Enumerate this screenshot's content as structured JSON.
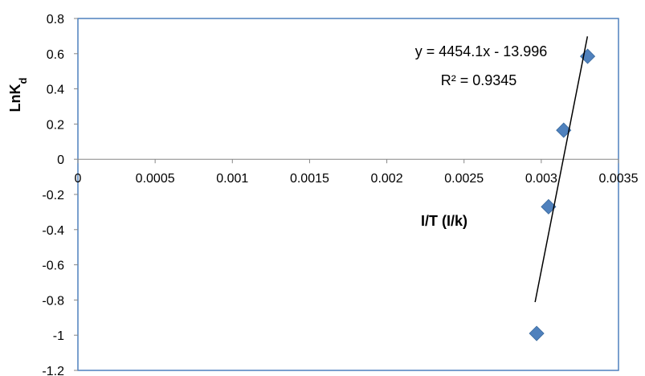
{
  "chart_data": {
    "type": "scatter",
    "xlabel": "I/T (I/k)",
    "ylabel": {
      "main": "LnK",
      "sub": "d"
    },
    "xlim": [
      0,
      0.0035
    ],
    "ylim": [
      -1.2,
      0.8
    ],
    "x_ticks": [
      "0",
      "0.0005",
      "0.001",
      "0.0015",
      "0.002",
      "0.0025",
      "0.003",
      "0.0035"
    ],
    "y_ticks": [
      "0.8",
      "0.6",
      "0.4",
      "0.2",
      "0",
      "-0.2",
      "-0.4",
      "-0.6",
      "-0.8",
      "-1",
      "-1.2"
    ],
    "grid": false,
    "legend": "none",
    "series": [
      {
        "x": [
          0.0033,
          0.003145,
          0.003047,
          0.00297
        ],
        "y": [
          0.585,
          0.165,
          -0.27,
          -0.99
        ],
        "color": "#4F81BD",
        "marker": "diamond"
      }
    ],
    "trendline": {
      "slope": 4454.1,
      "intercept": -13.996,
      "x_range": [
        0.00296,
        0.003299
      ],
      "color": "#000000",
      "equation_label": "y = 4454.1x - 13.996",
      "r2_label": "R² = 0.9345"
    },
    "plot_border_color": "#4F81BD"
  }
}
